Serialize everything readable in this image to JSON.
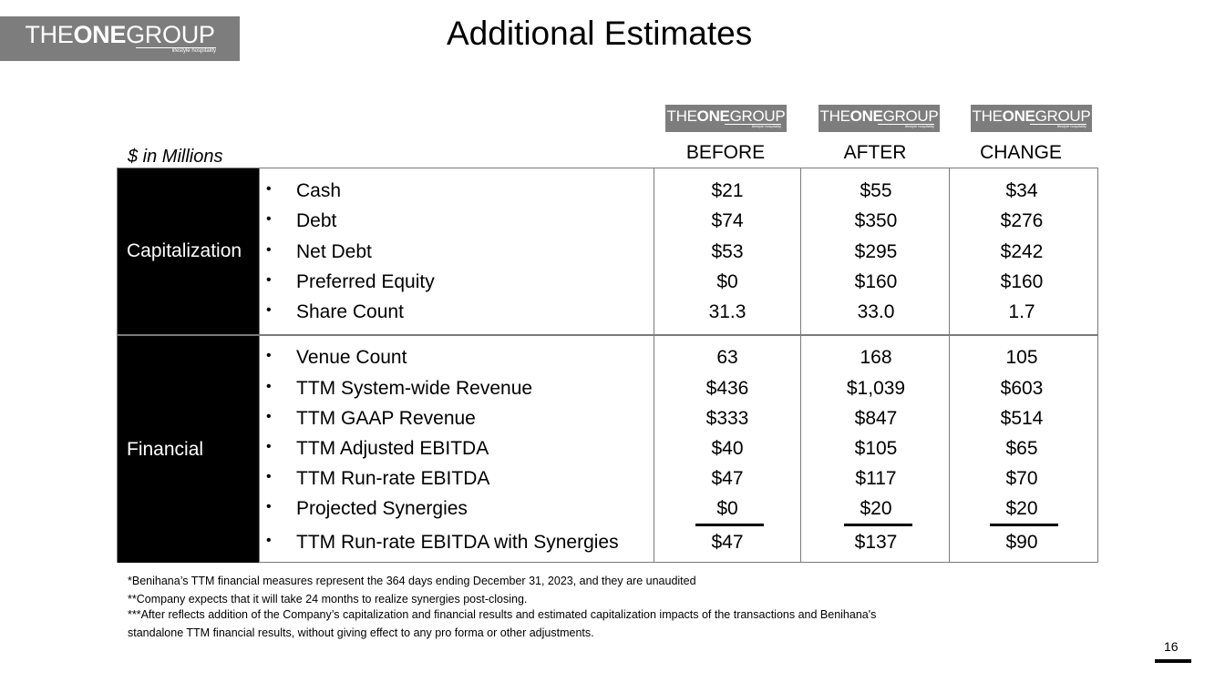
{
  "header": {
    "logo": {
      "pre": "THE",
      "bold": "ONE",
      "post": "GROUP",
      "tagline": "lifestyle hospitality"
    },
    "title": "Additional Estimates"
  },
  "table": {
    "units": "$ in Millions",
    "columns": [
      "BEFORE",
      "AFTER",
      "CHANGE"
    ],
    "sections": [
      {
        "name": "Capitalization",
        "rows": [
          {
            "label": "Cash",
            "values": [
              "$21",
              "$55",
              "$34"
            ]
          },
          {
            "label": "Debt",
            "values": [
              "$74",
              "$350",
              "$276"
            ]
          },
          {
            "label": "Net Debt",
            "values": [
              "$53",
              "$295",
              "$242"
            ]
          },
          {
            "label": "Preferred Equity",
            "values": [
              "$0",
              "$160",
              "$160"
            ]
          },
          {
            "label": "Share Count",
            "values": [
              "31.3",
              "33.0",
              "1.7"
            ]
          }
        ]
      },
      {
        "name": "Financial",
        "rows": [
          {
            "label": "Venue Count",
            "values": [
              "63",
              "168",
              "105"
            ]
          },
          {
            "label": "TTM System-wide Revenue",
            "values": [
              "$436",
              "$1,039",
              "$603"
            ]
          },
          {
            "label": "TTM GAAP Revenue",
            "values": [
              "$333",
              "$847",
              "$514"
            ]
          },
          {
            "label": "TTM Adjusted EBITDA",
            "values": [
              "$40",
              "$105",
              "$65"
            ]
          },
          {
            "label": "TTM Run-rate EBITDA",
            "values": [
              "$47",
              "$117",
              "$70"
            ]
          },
          {
            "label": "Projected Synergies",
            "values": [
              "$0",
              "$20",
              "$20"
            ]
          },
          {
            "label": "TTM Run-rate EBITDA with Synergies",
            "values": [
              "$47",
              "$137",
              "$90"
            ]
          }
        ]
      }
    ]
  },
  "footnotes": [
    "*Benihana’s TTM financial measures represent the 364 days ending December 31, 2023, and they are unaudited",
    "**Company expects that it will take 24 months to realize synergies post-closing.",
    "***After reflects addition of the Company’s capitalization and financial results and estimated capitalization impacts of the transactions and Benihana's",
    "standalone TTM financial results, without giving effect to any pro forma or other adjustments."
  ],
  "page_number": "16",
  "colors": {
    "logo_bg": "#7d7d7d",
    "section_bg": "#000000",
    "grid_line": "#7a7a7a"
  }
}
